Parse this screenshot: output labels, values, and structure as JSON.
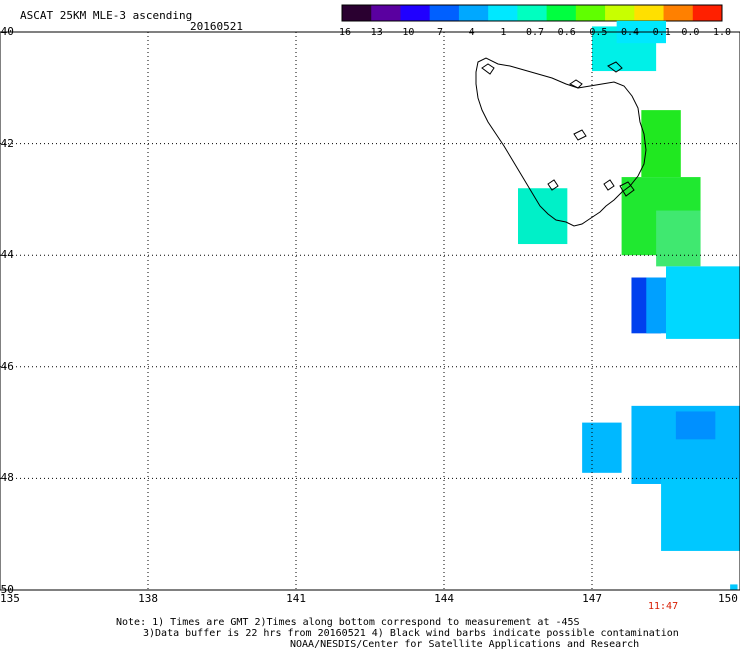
{
  "header": {
    "title": "ASCAT 25KM MLE-3 ascending",
    "date": "20160521"
  },
  "colorbar": {
    "labels": [
      "-16",
      "-13",
      "-10",
      "-7",
      "-4",
      "-1",
      "-0.7",
      "-0.6",
      "-0.5",
      "-0.4",
      "-0.1",
      "0.0",
      "1.0"
    ],
    "colors": [
      "#2a0030",
      "#5a00a0",
      "#2000ff",
      "#0060ff",
      "#00a8ff",
      "#00e8ff",
      "#00ffc0",
      "#00ff40",
      "#60ff00",
      "#c8ff00",
      "#ffe000",
      "#ff8000",
      "#ff2000"
    ]
  },
  "axes": {
    "x_ticks": [
      "135",
      "138",
      "141",
      "144",
      "147",
      "150"
    ],
    "y_ticks": [
      "-40",
      "-42",
      "-44",
      "-46",
      "-48",
      "-50"
    ],
    "x_range": [
      135,
      150
    ],
    "y_range": [
      -50,
      -40
    ]
  },
  "time_label": "11:47",
  "notes": {
    "line1": "Note: 1) Times are GMT 2)Times along bottom correspond to measurement at -45S",
    "line2": "3)Data buffer is 22 hrs from 20160521 4) Black wind barbs indicate possible contamination",
    "line3": "NOAA/NESDIS/Center for Satellite Applications and Research"
  },
  "swath_cells": [
    {
      "lon": 147.0,
      "lat": -40.7,
      "w": 1.3,
      "h": 0.8,
      "color": "#00f0e8"
    },
    {
      "lon": 147.5,
      "lat": -40.2,
      "w": 1.0,
      "h": 0.4,
      "color": "#00e8ff"
    },
    {
      "lon": 148.0,
      "lat": -42.6,
      "w": 0.8,
      "h": 1.2,
      "color": "#20e820"
    },
    {
      "lon": 147.6,
      "lat": -44.0,
      "w": 1.6,
      "h": 1.4,
      "color": "#20e830"
    },
    {
      "lon": 148.3,
      "lat": -44.2,
      "w": 0.9,
      "h": 1.0,
      "color": "#40e870"
    },
    {
      "lon": 145.5,
      "lat": -43.8,
      "w": 1.0,
      "h": 1.0,
      "color": "#00f0c8"
    },
    {
      "lon": 147.8,
      "lat": -45.4,
      "w": 0.6,
      "h": 1.0,
      "color": "#0040ee"
    },
    {
      "lon": 148.1,
      "lat": -45.4,
      "w": 0.6,
      "h": 1.0,
      "color": "#00a0ff"
    },
    {
      "lon": 148.5,
      "lat": -45.5,
      "w": 1.5,
      "h": 1.3,
      "color": "#00d8ff"
    },
    {
      "lon": 146.8,
      "lat": -47.9,
      "w": 0.8,
      "h": 0.9,
      "color": "#00b8ff"
    },
    {
      "lon": 147.8,
      "lat": -48.1,
      "w": 2.3,
      "h": 1.4,
      "color": "#00b8ff"
    },
    {
      "lon": 148.4,
      "lat": -49.3,
      "w": 1.6,
      "h": 1.3,
      "color": "#00c8ff"
    },
    {
      "lon": 148.7,
      "lat": -47.3,
      "w": 0.8,
      "h": 0.5,
      "color": "#0090ff"
    },
    {
      "lon": 149.8,
      "lat": -50.0,
      "w": 0.15,
      "h": 0.1,
      "color": "#00c8ff"
    }
  ]
}
